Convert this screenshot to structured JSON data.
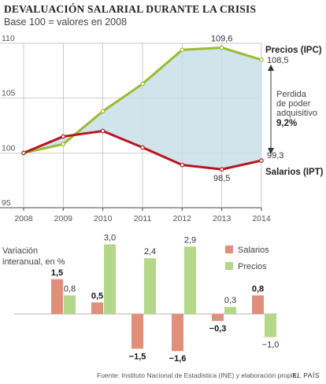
{
  "header": {
    "title": "DEVALUACIÓN SALARIAL DURANTE LA CRISIS",
    "subtitle": "Base 100 = valores en 2008"
  },
  "annotation": {
    "line1": "Perdida",
    "line2": "de poder",
    "line3": "adquisitivo",
    "value": "9,2%"
  },
  "colors": {
    "precios": "#9bbb2e",
    "salarios": "#b5161e",
    "gap_fill": "#c9dfe9",
    "bar_salarios": "#e0907a",
    "bar_precios": "#b4d88a"
  },
  "chart_data": [
    {
      "type": "line",
      "x": [
        "2008",
        "2009",
        "2010",
        "2011",
        "2012",
        "2013",
        "2014"
      ],
      "ylim": [
        95,
        110
      ],
      "yticks": [
        "95",
        "100",
        "105",
        "110"
      ],
      "series": [
        {
          "name": "Precios (IPC)",
          "values": [
            100,
            100.8,
            103.8,
            106.3,
            109.4,
            109.6,
            108.5
          ]
        },
        {
          "name": "Salarios (IPT)",
          "values": [
            100,
            101.5,
            102.0,
            100.5,
            98.9,
            98.5,
            99.3
          ]
        }
      ],
      "labels": [
        {
          "series": 0,
          "index": 5,
          "text": "109,6"
        },
        {
          "series": 0,
          "index": 6,
          "text": "108,5"
        },
        {
          "series": 1,
          "index": 5,
          "text": "98,5"
        },
        {
          "series": 1,
          "index": 6,
          "text": "99,3"
        }
      ],
      "grid": true
    },
    {
      "type": "bar",
      "ylabel": "Variación interanual, en %",
      "categories": [
        "2009",
        "2010",
        "2011",
        "2012",
        "2013",
        "2014"
      ],
      "series": [
        {
          "name": "Salarios",
          "values": [
            1.5,
            0.5,
            -1.5,
            -1.6,
            -0.3,
            0.8
          ],
          "labels": [
            "1,5",
            "0,5",
            "−1,5",
            "−1,6",
            "−0,3",
            "0,8"
          ]
        },
        {
          "name": "Precios",
          "values": [
            0.8,
            3.0,
            2.4,
            2.9,
            0.3,
            -1.0
          ],
          "labels": [
            "0,8",
            "3,0",
            "2,4",
            "2,9",
            "0,3",
            "−1,0"
          ]
        }
      ],
      "legend": "top-right"
    }
  ],
  "footer": {
    "source": "Fuente: Instituto Nacional de Estadística (INE) y elaboración propia.",
    "brand": "EL PAÍS"
  }
}
